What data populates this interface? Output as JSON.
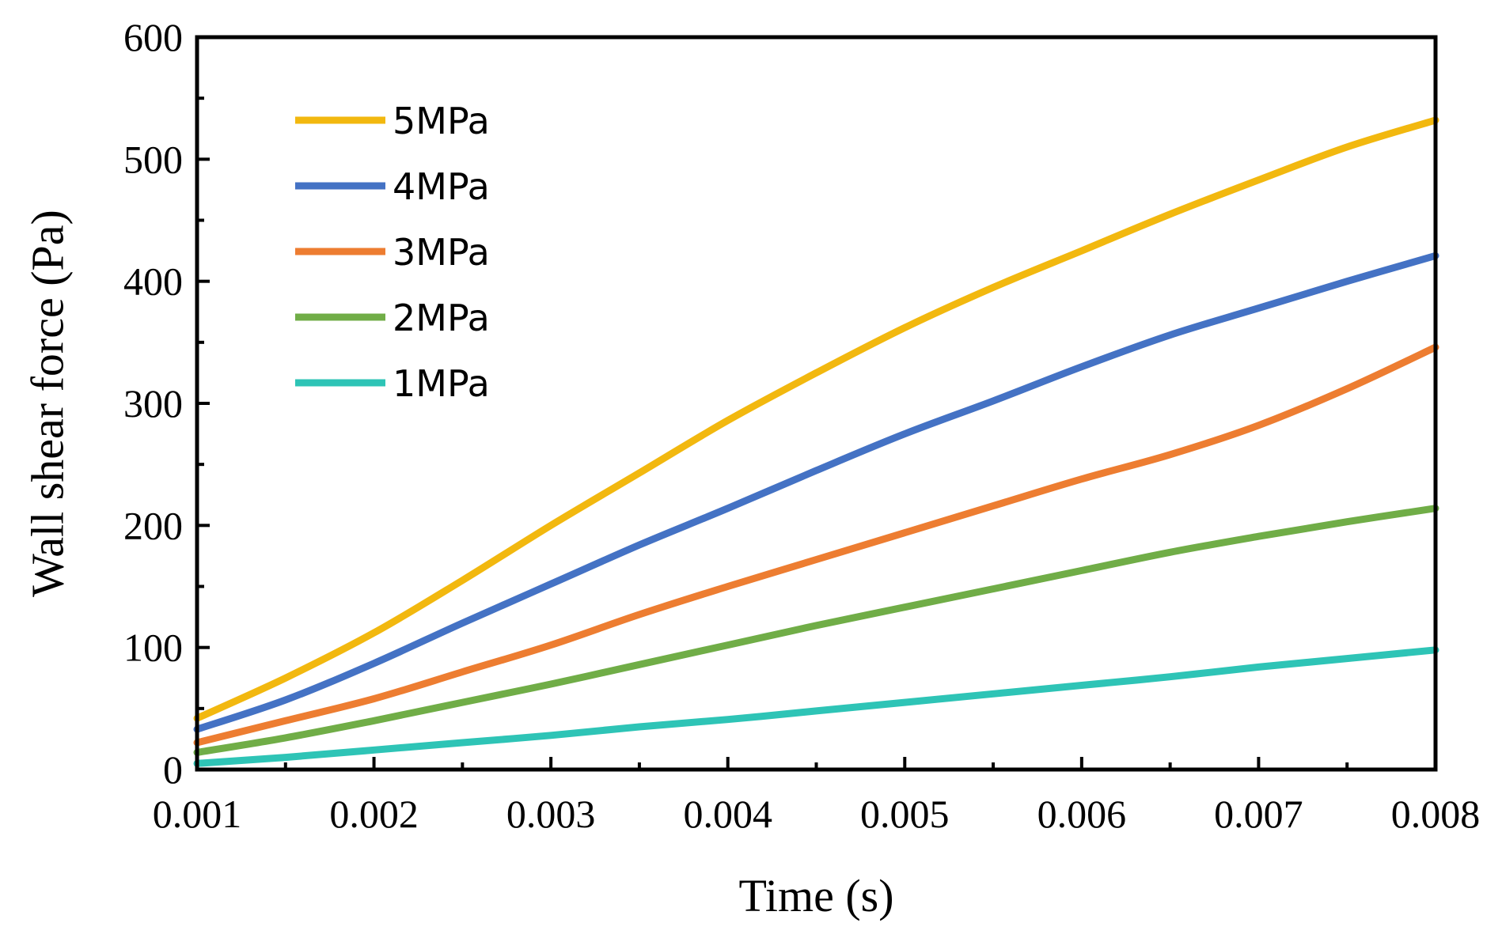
{
  "chart_data": {
    "type": "line",
    "title": "",
    "xlabel": "Time (s)",
    "ylabel": "Wall shear force (Pa)",
    "xlim": [
      0.001,
      0.008
    ],
    "ylim": [
      0,
      600
    ],
    "xticks": [
      "0.001",
      "0.002",
      "0.003",
      "0.004",
      "0.005",
      "0.006",
      "0.007",
      "0.008"
    ],
    "yticks": [
      "0",
      "100",
      "200",
      "300",
      "400",
      "500",
      "600"
    ],
    "grid": false,
    "legend_position": "top-left",
    "series": [
      {
        "name": "5MPa",
        "color": "#F2B80F",
        "x": [
          0.001,
          0.0015,
          0.002,
          0.0025,
          0.003,
          0.0035,
          0.004,
          0.0045,
          0.005,
          0.0055,
          0.006,
          0.0065,
          0.007,
          0.0075,
          0.008
        ],
        "y": [
          42,
          75,
          112,
          155,
          200,
          243,
          286,
          325,
          362,
          395,
          425,
          455,
          483,
          510,
          532
        ]
      },
      {
        "name": "4MPa",
        "color": "#4472C4",
        "x": [
          0.001,
          0.0015,
          0.002,
          0.0025,
          0.003,
          0.0035,
          0.004,
          0.0045,
          0.005,
          0.0055,
          0.006,
          0.0065,
          0.007,
          0.0075,
          0.008
        ],
        "y": [
          33,
          57,
          87,
          120,
          152,
          184,
          214,
          245,
          275,
          302,
          330,
          356,
          378,
          400,
          421
        ]
      },
      {
        "name": "3MPa",
        "color": "#ED7D31",
        "x": [
          0.001,
          0.0015,
          0.002,
          0.0025,
          0.003,
          0.0035,
          0.004,
          0.0045,
          0.005,
          0.0055,
          0.006,
          0.0065,
          0.007,
          0.0075,
          0.008
        ],
        "y": [
          22,
          40,
          58,
          80,
          102,
          127,
          150,
          172,
          194,
          216,
          238,
          258,
          282,
          312,
          346
        ]
      },
      {
        "name": "2MPa",
        "color": "#70AD47",
        "x": [
          0.001,
          0.0015,
          0.002,
          0.0025,
          0.003,
          0.0035,
          0.004,
          0.0045,
          0.005,
          0.0055,
          0.006,
          0.0065,
          0.007,
          0.0075,
          0.008
        ],
        "y": [
          14,
          26,
          40,
          55,
          70,
          86,
          102,
          118,
          133,
          148,
          163,
          178,
          191,
          203,
          214
        ]
      },
      {
        "name": "1MPa",
        "color": "#2EC4B6",
        "x": [
          0.001,
          0.0015,
          0.002,
          0.0025,
          0.003,
          0.0035,
          0.004,
          0.0045,
          0.005,
          0.0055,
          0.006,
          0.0065,
          0.007,
          0.0075,
          0.008
        ],
        "y": [
          5,
          10,
          16,
          22,
          28,
          35,
          41,
          48,
          55,
          62,
          69,
          76,
          84,
          91,
          98
        ]
      }
    ]
  }
}
